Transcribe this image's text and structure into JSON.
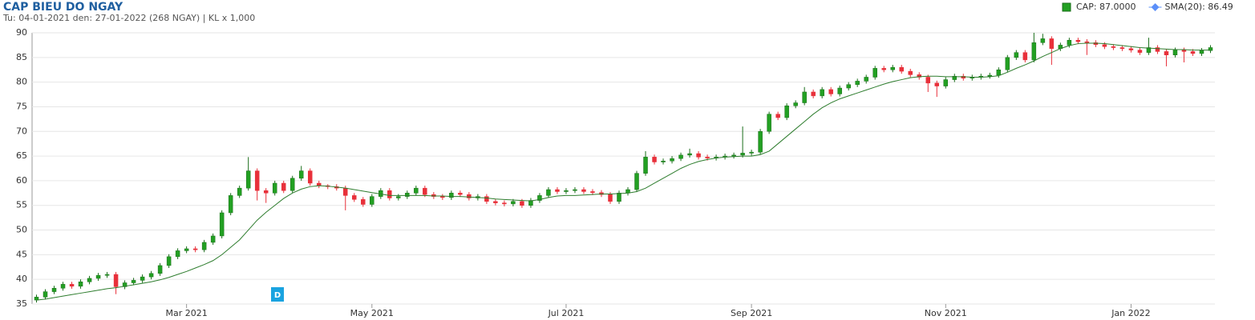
{
  "chart_data": {
    "type": "candlestick",
    "title": "CAP BIEU DO NGAY",
    "subtitle": "Tu: 04-01-2021 den: 27-01-2022 (268 NGAY) | KL x 1,000",
    "marker_text": "D",
    "categories": [
      null,
      null,
      null,
      null,
      null,
      null,
      null,
      null,
      null,
      null,
      null,
      null,
      null,
      null,
      null,
      null,
      null,
      "Mar 2021",
      null,
      null,
      null,
      null,
      null,
      null,
      null,
      null,
      null,
      null,
      null,
      null,
      null,
      null,
      null,
      null,
      null,
      null,
      null,
      null,
      "May 2021",
      null,
      null,
      null,
      null,
      null,
      null,
      null,
      null,
      null,
      null,
      null,
      null,
      null,
      null,
      null,
      null,
      null,
      null,
      null,
      null,
      null,
      "Jul 2021",
      null,
      null,
      null,
      null,
      null,
      null,
      null,
      null,
      null,
      null,
      null,
      null,
      null,
      null,
      null,
      null,
      null,
      null,
      null,
      null,
      "Sep 2021",
      null,
      null,
      null,
      null,
      null,
      null,
      null,
      null,
      null,
      null,
      null,
      null,
      null,
      null,
      null,
      null,
      null,
      null,
      null,
      null,
      null,
      "Nov 2021",
      null,
      null,
      null,
      null,
      null,
      null,
      null,
      null,
      null,
      null,
      null,
      null,
      null,
      null,
      null,
      null,
      null,
      null,
      null,
      null,
      "Jan 2022",
      null,
      null,
      null,
      null,
      null,
      null,
      null,
      null,
      null
    ],
    "ylim": [
      35,
      90
    ],
    "yticks": [
      35,
      40,
      45,
      50,
      55,
      60,
      65,
      70,
      75,
      80,
      85,
      90
    ],
    "grid": true,
    "up_color": "#22a022",
    "down_color": "#e8303a",
    "series": [
      {
        "name": "CAP: 87.0000",
        "color": "#22a022",
        "open": [
          35.8,
          36.4,
          37.5,
          38.2,
          39.0,
          38.6,
          39.5,
          40.2,
          40.8,
          41.0,
          38.5,
          39.3,
          39.8,
          40.5,
          41.2,
          42.8,
          44.6,
          45.8,
          46.2,
          46.0,
          47.5,
          48.8,
          53.5,
          57.0,
          58.5,
          62.0,
          58.0,
          57.5,
          59.5,
          58.0,
          60.5,
          62.0,
          59.5,
          59.0,
          58.8,
          58.5,
          57.0,
          56.2,
          55.2,
          56.8,
          58.0,
          56.5,
          56.8,
          57.5,
          58.5,
          57.2,
          56.8,
          56.6,
          57.5,
          57.2,
          56.5,
          56.8,
          55.8,
          55.5,
          55.3,
          55.8,
          55.0,
          56.0,
          57.0,
          58.2,
          57.8,
          58.0,
          58.2,
          57.8,
          57.6,
          57.2,
          55.8,
          57.5,
          58.2,
          61.5,
          64.8,
          63.8,
          64.0,
          64.5,
          65.2,
          65.5,
          64.8,
          64.6,
          64.8,
          65.0,
          65.2,
          65.6,
          65.8,
          70.0,
          73.5,
          72.8,
          75.2,
          75.8,
          78.0,
          77.2,
          78.5,
          77.6,
          78.8,
          79.5,
          80.2,
          81.0,
          82.8,
          82.5,
          83.0,
          82.2,
          81.5,
          81.0,
          79.8,
          79.2,
          80.5,
          81.2,
          80.8,
          81.0,
          81.2,
          81.4,
          82.5,
          85.0,
          86.0,
          84.5,
          88.0,
          88.8,
          86.8,
          87.5,
          88.5,
          88.2,
          88.0,
          87.6,
          87.2,
          87.0,
          86.8,
          86.5,
          86.0,
          87.0,
          86.2,
          85.5,
          86.5,
          86.2,
          85.8,
          86.4
        ],
        "high": [
          36.9,
          38.0,
          38.7,
          39.5,
          39.5,
          40.0,
          40.7,
          41.3,
          41.5,
          41.5,
          39.8,
          40.3,
          41.0,
          41.7,
          43.3,
          45.1,
          46.3,
          46.7,
          46.7,
          48.0,
          49.3,
          54.0,
          57.5,
          59.0,
          64.8,
          62.5,
          58.5,
          60.0,
          60.0,
          61.0,
          63.0,
          62.5,
          60.0,
          59.3,
          59.3,
          59.0,
          57.5,
          56.7,
          57.3,
          58.5,
          58.5,
          57.3,
          58.0,
          59.0,
          59.0,
          57.7,
          57.3,
          58.0,
          58.0,
          57.7,
          57.3,
          57.3,
          56.3,
          56.0,
          56.3,
          56.3,
          56.5,
          57.5,
          58.7,
          58.7,
          58.5,
          58.7,
          58.7,
          58.3,
          58.1,
          57.7,
          58.0,
          58.7,
          62.0,
          66.0,
          65.3,
          64.5,
          65.0,
          65.7,
          66.5,
          66.0,
          65.3,
          65.3,
          65.5,
          65.7,
          71.0,
          66.3,
          70.5,
          74.0,
          74.0,
          75.7,
          76.3,
          79.0,
          78.5,
          79.0,
          79.0,
          79.3,
          80.0,
          80.7,
          81.5,
          83.3,
          83.3,
          83.5,
          83.5,
          82.7,
          82.0,
          81.5,
          80.3,
          81.0,
          81.7,
          81.7,
          81.5,
          81.7,
          81.9,
          83.0,
          85.5,
          86.5,
          86.5,
          90.0,
          89.8,
          89.3,
          88.0,
          89.0,
          89.0,
          88.7,
          88.5,
          88.1,
          87.7,
          87.5,
          87.3,
          87.0,
          89.0,
          87.5,
          86.7,
          87.0,
          87.0,
          86.7,
          86.9,
          87.5
        ],
        "low": [
          35.3,
          35.9,
          37.0,
          37.7,
          38.1,
          38.1,
          39.0,
          39.7,
          40.3,
          37.0,
          38.0,
          38.8,
          39.3,
          40.0,
          40.7,
          42.3,
          44.1,
          45.3,
          45.5,
          45.5,
          47.0,
          48.3,
          53.0,
          56.5,
          58.0,
          56.0,
          55.5,
          57.0,
          57.5,
          57.5,
          60.0,
          59.0,
          58.5,
          58.3,
          58.0,
          54.0,
          55.7,
          54.7,
          54.7,
          56.3,
          56.0,
          56.0,
          56.3,
          57.0,
          56.7,
          56.3,
          56.1,
          56.1,
          56.7,
          56.0,
          56.0,
          55.3,
          55.0,
          54.8,
          54.8,
          54.5,
          54.5,
          55.5,
          56.5,
          57.3,
          57.3,
          57.5,
          57.3,
          57.1,
          56.7,
          55.3,
          55.3,
          57.0,
          57.7,
          61.0,
          63.3,
          63.3,
          63.5,
          64.0,
          64.7,
          64.3,
          64.1,
          64.1,
          64.3,
          64.5,
          64.7,
          65.1,
          65.3,
          69.5,
          72.3,
          72.3,
          74.7,
          75.3,
          76.7,
          76.7,
          77.1,
          77.1,
          78.3,
          79.0,
          79.7,
          80.5,
          82.0,
          82.0,
          81.7,
          81.0,
          80.5,
          78.0,
          77.0,
          78.7,
          80.0,
          80.3,
          80.3,
          80.5,
          80.7,
          80.9,
          82.0,
          84.5,
          84.0,
          84.0,
          87.5,
          83.5,
          86.3,
          87.0,
          87.7,
          85.5,
          87.1,
          86.7,
          86.5,
          86.3,
          86.0,
          85.5,
          85.5,
          85.7,
          83.2,
          85.0,
          84.0,
          85.3,
          85.3,
          85.9
        ],
        "close": [
          36.4,
          37.5,
          38.2,
          39.0,
          38.6,
          39.5,
          40.2,
          40.8,
          41.0,
          38.5,
          39.3,
          39.8,
          40.5,
          41.2,
          42.8,
          44.6,
          45.8,
          46.2,
          46.0,
          47.5,
          48.8,
          53.5,
          57.0,
          58.5,
          62.0,
          58.0,
          57.5,
          59.5,
          58.0,
          60.5,
          62.0,
          59.5,
          59.0,
          58.8,
          58.5,
          57.0,
          56.2,
          55.2,
          56.8,
          58.0,
          56.5,
          56.8,
          57.5,
          58.5,
          57.2,
          56.8,
          56.6,
          57.5,
          57.2,
          56.5,
          56.8,
          55.8,
          55.5,
          55.3,
          55.8,
          55.0,
          56.0,
          57.0,
          58.2,
          57.8,
          58.0,
          58.2,
          57.8,
          57.6,
          57.2,
          55.8,
          57.5,
          58.2,
          61.5,
          64.8,
          63.8,
          64.0,
          64.5,
          65.2,
          65.5,
          64.8,
          64.6,
          64.8,
          65.0,
          65.2,
          65.6,
          65.8,
          70.0,
          73.5,
          72.8,
          75.2,
          75.8,
          78.0,
          77.2,
          78.5,
          77.6,
          78.8,
          79.5,
          80.2,
          81.0,
          82.8,
          82.5,
          83.0,
          82.2,
          81.5,
          81.0,
          79.8,
          79.2,
          80.5,
          81.2,
          80.8,
          81.0,
          81.2,
          81.4,
          82.5,
          85.0,
          86.0,
          84.5,
          88.0,
          88.8,
          86.8,
          87.5,
          88.5,
          88.2,
          88.0,
          87.6,
          87.2,
          87.0,
          86.8,
          86.5,
          86.0,
          87.0,
          86.2,
          85.5,
          86.5,
          86.2,
          85.8,
          86.4,
          87.0
        ]
      },
      {
        "name": "SMA(20): 86.49",
        "color": "#2e7d2e",
        "marker_color": "#5b8ff9",
        "values": [
          35.8,
          36.0,
          36.3,
          36.6,
          36.9,
          37.2,
          37.5,
          37.8,
          38.1,
          38.3,
          38.6,
          38.9,
          39.2,
          39.5,
          39.9,
          40.4,
          41.0,
          41.6,
          42.3,
          43.0,
          43.8,
          45.0,
          46.5,
          48.0,
          50.0,
          52.0,
          53.6,
          55.0,
          56.4,
          57.5,
          58.3,
          58.8,
          59.0,
          58.9,
          58.7,
          58.5,
          58.2,
          57.9,
          57.6,
          57.3,
          57.0,
          57.0,
          57.0,
          57.0,
          57.0,
          56.9,
          56.9,
          56.8,
          56.8,
          56.7,
          56.6,
          56.5,
          56.3,
          56.2,
          56.1,
          56.0,
          55.9,
          56.2,
          56.6,
          56.9,
          57.0,
          57.0,
          57.1,
          57.2,
          57.3,
          57.3,
          57.4,
          57.5,
          57.8,
          58.5,
          59.5,
          60.5,
          61.5,
          62.5,
          63.3,
          63.9,
          64.3,
          64.6,
          64.8,
          64.9,
          65.0,
          65.0,
          65.3,
          66.0,
          67.5,
          69.0,
          70.5,
          72.0,
          73.5,
          74.8,
          75.8,
          76.6,
          77.2,
          77.8,
          78.4,
          79.0,
          79.6,
          80.1,
          80.5,
          80.9,
          81.1,
          81.2,
          81.2,
          81.1,
          81.1,
          81.1,
          81.0,
          81.0,
          81.1,
          81.3,
          82.0,
          82.8,
          83.5,
          84.3,
          85.2,
          86.0,
          86.8,
          87.4,
          87.8,
          87.9,
          87.9,
          87.8,
          87.6,
          87.4,
          87.2,
          87.0,
          86.9,
          86.8,
          86.7,
          86.6,
          86.6,
          86.5,
          86.5,
          86.49
        ]
      }
    ]
  }
}
